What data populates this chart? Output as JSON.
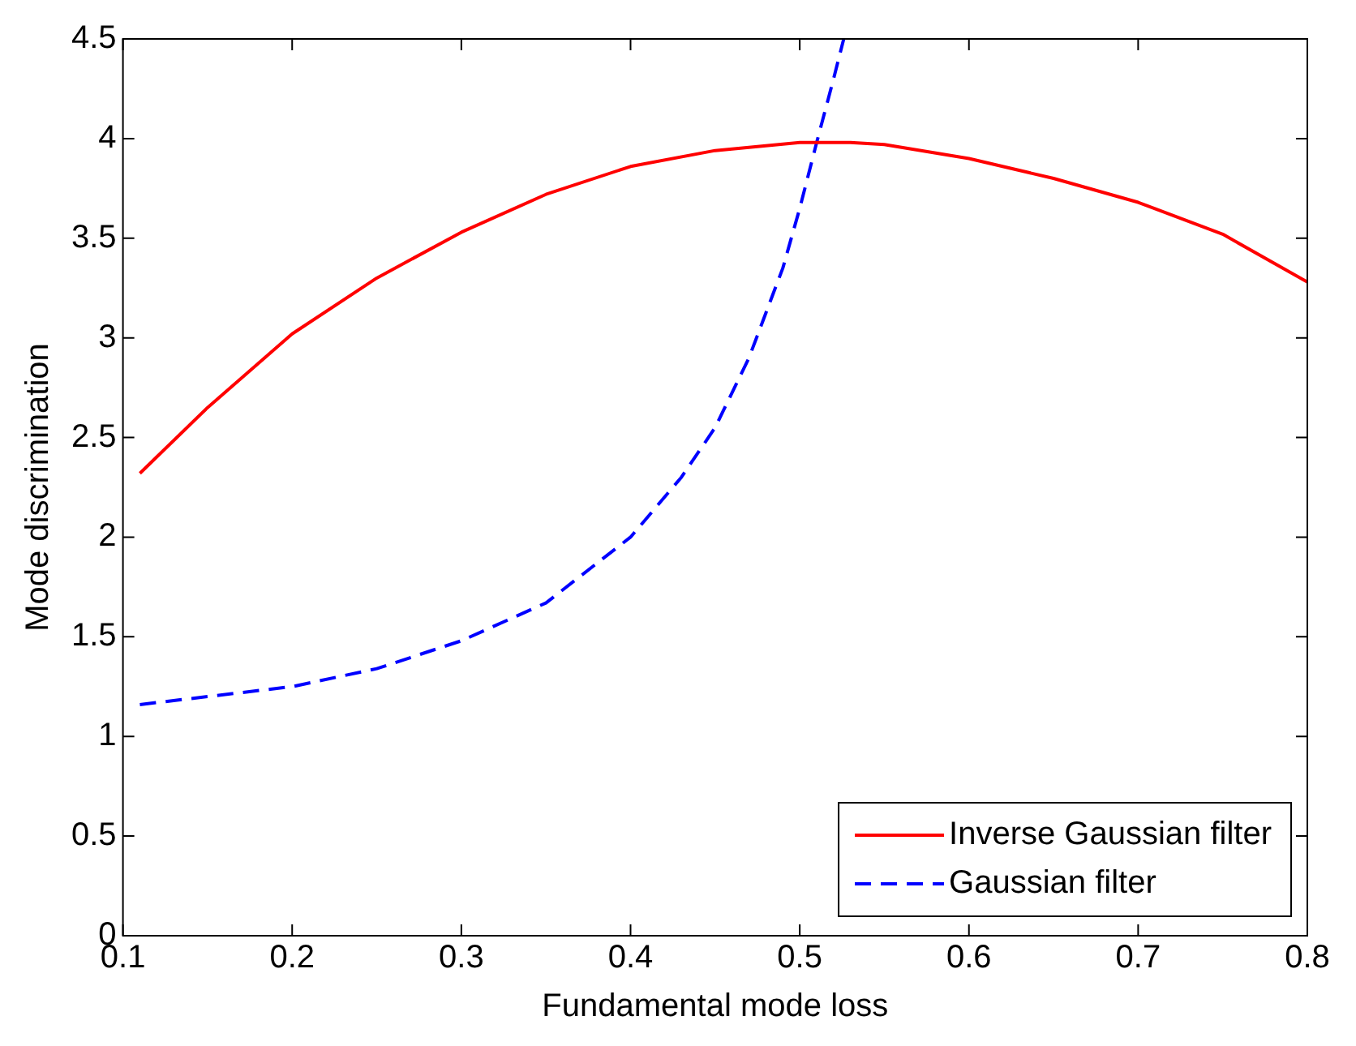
{
  "chart_data": {
    "type": "line",
    "xlabel": "Fundamental mode loss",
    "ylabel": "Mode discrimination",
    "xlim": [
      0.1,
      0.8
    ],
    "xticks": [
      0.1,
      0.2,
      0.3,
      0.4,
      0.5,
      0.6,
      0.7,
      0.8
    ],
    "ylim": [
      0,
      4.5
    ],
    "yticks": [
      0,
      0.5,
      1,
      1.5,
      2,
      2.5,
      3,
      3.5,
      4,
      4.5
    ],
    "grid": false,
    "legend": "bottom right",
    "marker": "none",
    "series": [
      {
        "name": "Inverse Gaussian filter",
        "color": "#ff0000",
        "line_style": "solid",
        "x": [
          0.11,
          0.15,
          0.2,
          0.25,
          0.3,
          0.35,
          0.4,
          0.45,
          0.5,
          0.53,
          0.55,
          0.6,
          0.65,
          0.7,
          0.75,
          0.8
        ],
        "values": [
          2.32,
          2.65,
          3.02,
          3.3,
          3.53,
          3.72,
          3.86,
          3.94,
          3.98,
          3.98,
          3.97,
          3.9,
          3.8,
          3.68,
          3.52,
          3.28
        ]
      },
      {
        "name": "Gaussian filter",
        "color": "#0000ff",
        "line_style": "dashed",
        "x": [
          0.11,
          0.15,
          0.2,
          0.25,
          0.3,
          0.35,
          0.4,
          0.43,
          0.45,
          0.47,
          0.49,
          0.5,
          0.51,
          0.52,
          0.526
        ],
        "values": [
          1.16,
          1.2,
          1.25,
          1.34,
          1.48,
          1.67,
          2.0,
          2.3,
          2.55,
          2.9,
          3.35,
          3.65,
          3.98,
          4.3,
          4.5
        ]
      }
    ]
  }
}
